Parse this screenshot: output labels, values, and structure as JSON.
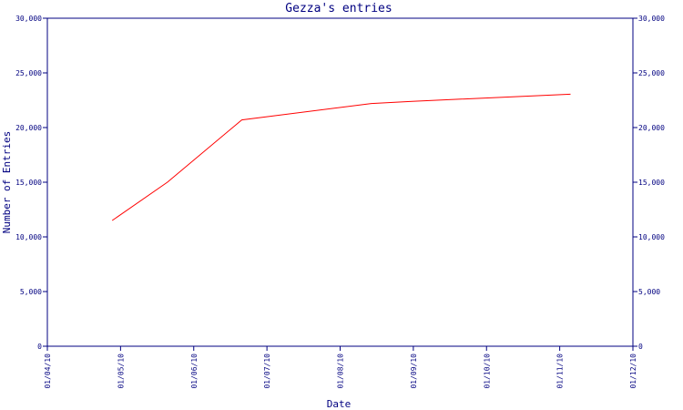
{
  "chart_data": {
    "type": "line",
    "title": "Gezza's entries",
    "xlabel": "Date",
    "ylabel": "Number of Entries",
    "x_ticks": [
      "01/04/10",
      "01/05/10",
      "01/06/10",
      "01/07/10",
      "01/08/10",
      "01/09/10",
      "01/10/10",
      "01/11/10",
      "01/12/10"
    ],
    "y_ticks": [
      "0",
      "5,000",
      "10,000",
      "15,000",
      "20,000",
      "25,000",
      "30,000"
    ],
    "y_tick_values": [
      0,
      5000,
      10000,
      15000,
      20000,
      25000,
      30000
    ],
    "ylim": [
      0,
      30000
    ],
    "xlim": [
      "2010-04-01",
      "2010-12-01"
    ],
    "grid": false,
    "right_axis_mirrored": true,
    "series": [
      {
        "color": "#ff0000",
        "x": [
          "2010-04-28",
          "2010-05-21",
          "2010-06-21",
          "2010-08-14",
          "2010-08-31",
          "2010-11-05"
        ],
        "y": [
          11500,
          15000,
          20700,
          22200,
          22400,
          23050
        ]
      }
    ]
  }
}
